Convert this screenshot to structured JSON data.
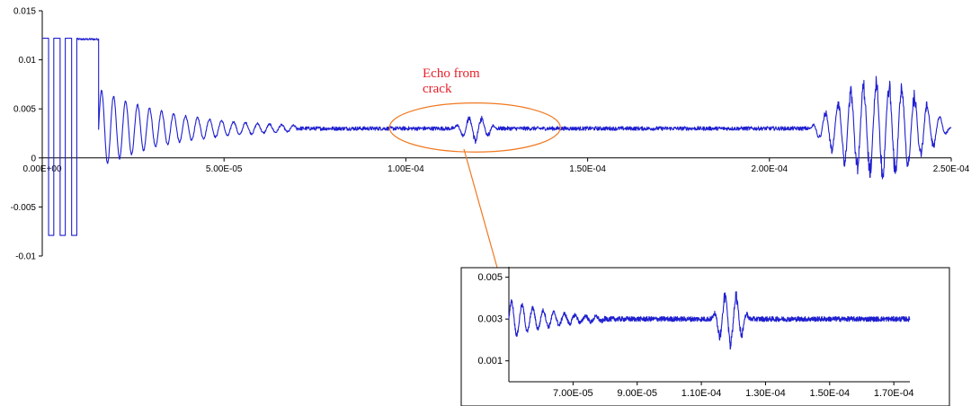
{
  "chart_data": [
    {
      "type": "line",
      "title": "",
      "xlabel": "",
      "ylabel": "",
      "xlim": [
        0,
        0.00025
      ],
      "ylim": [
        -0.01,
        0.015
      ],
      "x_ticks": [
        0,
        5e-05,
        0.0001,
        0.00015,
        0.0002,
        0.00025
      ],
      "x_tick_labels": [
        "0.00E+00",
        "5.00E-05",
        "1.00E-04",
        "1.50E-04",
        "2.00E-04",
        "2.50E-04"
      ],
      "y_ticks": [
        -0.01,
        -0.005,
        0,
        0.005,
        0.01,
        0.015
      ],
      "y_tick_labels": [
        "-0.01",
        "-0.005",
        "0",
        "0.005",
        "0.01",
        "0.015"
      ],
      "series": [
        {
          "color": "#1f1fd0",
          "segments": [
            {
              "kind": "square",
              "x_start": 0,
              "x_end": 9.5e-06,
              "high": 0.0122,
              "low": -0.0079,
              "cycles": 3
            },
            {
              "kind": "flat",
              "x_start": 9.5e-06,
              "x_end": 1.55e-05,
              "y": 0.0121
            },
            {
              "kind": "decay",
              "x_start": 1.55e-05,
              "x_end": 7e-05,
              "center": 0.003,
              "amp_start": 0.004,
              "amp_end": 0.0003,
              "period": 3.3e-06
            },
            {
              "kind": "noise",
              "x_start": 7e-05,
              "x_end": 0.000113,
              "center": 0.003,
              "amp": 0.0002
            },
            {
              "kind": "burst",
              "x_start": 0.000113,
              "x_end": 0.000125,
              "center": 0.003,
              "amp": 0.0015,
              "period": 3.5e-06
            },
            {
              "kind": "noise",
              "x_start": 0.000125,
              "x_end": 0.000211,
              "center": 0.003,
              "amp": 0.0002
            },
            {
              "kind": "burst",
              "x_start": 0.000211,
              "x_end": 0.00025,
              "center": 0.003,
              "amp": 0.0055,
              "period": 3.5e-06
            }
          ]
        }
      ],
      "annotations": [
        {
          "text": "Echo from\ncrack",
          "color": "#e8202a"
        }
      ],
      "highlight_ellipse": {
        "x_center": 0.000119,
        "y_center": 0.0031,
        "x_radius": 2.35e-05,
        "y_radius": 0.0025,
        "color": "#f07820"
      },
      "grid": false,
      "legend": "none"
    },
    {
      "type": "line",
      "title": "",
      "xlabel": "",
      "ylabel": "",
      "xlim": [
        5e-05,
        0.000175
      ],
      "ylim": [
        0,
        0.0055
      ],
      "x_ticks": [
        7e-05,
        9e-05,
        0.00011,
        0.00013,
        0.00015,
        0.00017
      ],
      "x_tick_labels": [
        "7.00E-05",
        "9.00E-05",
        "1.10E-04",
        "1.30E-04",
        "1.50E-04",
        "1.70E-04"
      ],
      "y_ticks": [
        0.001,
        0.003,
        0.005
      ],
      "y_tick_labels": [
        "0.001",
        "0.003",
        "0.005"
      ],
      "series": [
        {
          "color": "#1f1fd0",
          "segments": [
            {
              "kind": "decay",
              "x_start": 5e-05,
              "x_end": 8e-05,
              "center": 0.003,
              "amp_start": 0.0009,
              "amp_end": 0.0001,
              "period": 3.3e-06
            },
            {
              "kind": "noise",
              "x_start": 8e-05,
              "x_end": 0.000113,
              "center": 0.003,
              "amp": 0.00012
            },
            {
              "kind": "burst",
              "x_start": 0.000113,
              "x_end": 0.000125,
              "center": 0.003,
              "amp": 0.0015,
              "period": 3.5e-06
            },
            {
              "kind": "noise",
              "x_start": 0.000125,
              "x_end": 0.000175,
              "center": 0.003,
              "amp": 0.00012
            }
          ]
        }
      ],
      "grid": false,
      "legend": "none"
    }
  ]
}
